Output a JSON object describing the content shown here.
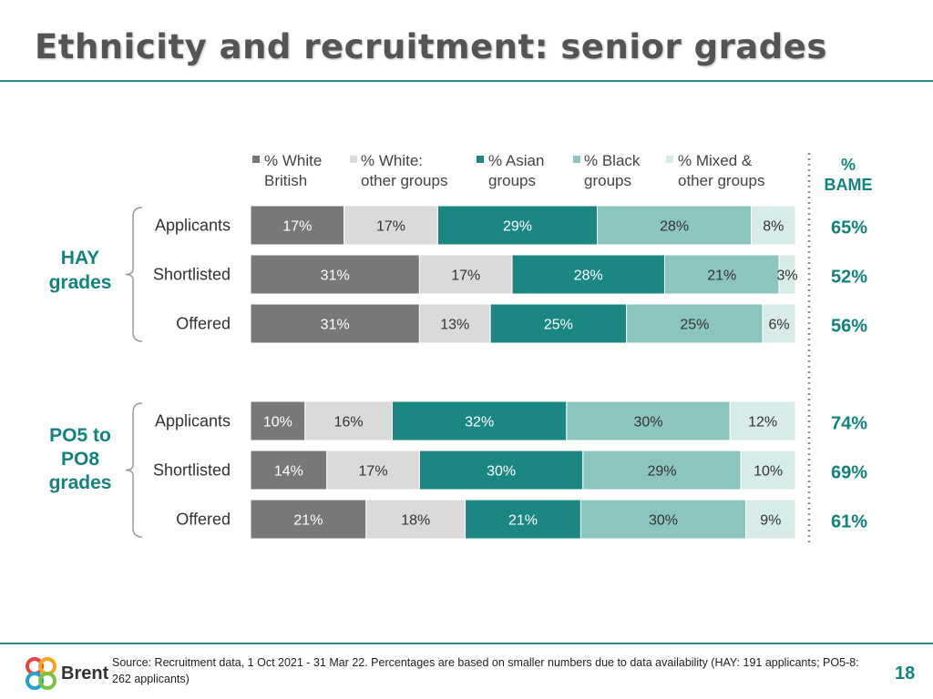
{
  "page": {
    "title": "Ethnicity and recruitment: senior grades",
    "source": "Source: Recruitment data, 1 Oct 2021 - 31 Mar 22. Percentages are based on smaller numbers due to data availability (HAY: 191 applicants; PO5-8: 262 applicants)",
    "page_number": "18",
    "logo_text": "Brent"
  },
  "chart_data": {
    "type": "bar",
    "orientation": "horizontal",
    "stacked": true,
    "series": [
      {
        "name": "% White British",
        "color": "#787878"
      },
      {
        "name": "% White: other groups",
        "color": "#dadada"
      },
      {
        "name": "% Asian groups",
        "color": "#1a8783"
      },
      {
        "name": "% Black groups",
        "color": "#8cc4bf"
      },
      {
        "name": "% Mixed & other groups",
        "color": "#d7ebe8"
      }
    ],
    "bame_header": "% BAME",
    "groups": [
      {
        "name": "HAY grades",
        "rows": [
          {
            "category": "Applicants",
            "values": [
              17,
              17,
              29,
              28,
              8
            ],
            "labels": [
              "17%",
              "17%",
              "29%",
              "28%",
              "8%"
            ],
            "bame": "65%"
          },
          {
            "category": "Shortlisted",
            "values": [
              31,
              17,
              28,
              21,
              3
            ],
            "labels": [
              "31%",
              "17%",
              "28%",
              "21%",
              "3%"
            ],
            "bame": "52%"
          },
          {
            "category": "Offered",
            "values": [
              31,
              13,
              25,
              25,
              6
            ],
            "labels": [
              "31%",
              "13%",
              "25%",
              "25%",
              "6%"
            ],
            "bame": "56%"
          }
        ]
      },
      {
        "name": "PO5 to PO8 grades",
        "rows": [
          {
            "category": "Applicants",
            "values": [
              10,
              16,
              32,
              30,
              12
            ],
            "labels": [
              "10%",
              "16%",
              "32%",
              "30%",
              "12%"
            ],
            "bame": "74%"
          },
          {
            "category": "Shortlisted",
            "values": [
              14,
              17,
              30,
              29,
              10
            ],
            "labels": [
              "14%",
              "17%",
              "30%",
              "29%",
              "10%"
            ],
            "bame": "69%"
          },
          {
            "category": "Offered",
            "values": [
              21,
              18,
              21,
              30,
              9
            ],
            "labels": [
              "21%",
              "18%",
              "21%",
              "30%",
              "9%"
            ],
            "bame": "61%"
          }
        ]
      }
    ]
  }
}
